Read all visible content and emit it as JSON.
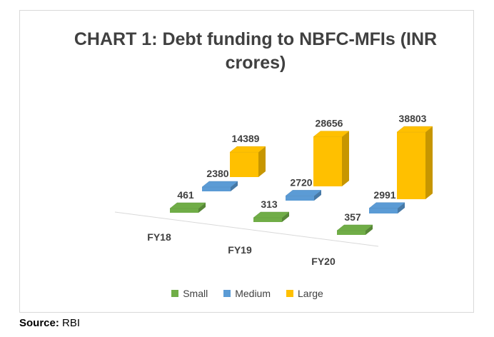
{
  "chart_data": {
    "type": "bar",
    "title": "CHART 1: Debt funding to NBFC-MFIs (INR crores)",
    "categories": [
      "FY18",
      "FY19",
      "FY20"
    ],
    "series": [
      {
        "name": "Small",
        "color": "#70ad47",
        "values": [
          461,
          313,
          357
        ]
      },
      {
        "name": "Medium",
        "color": "#5b9bd5",
        "values": [
          2380,
          2720,
          2991
        ]
      },
      {
        "name": "Large",
        "color": "#ffc000",
        "values": [
          14389,
          28656,
          38803
        ]
      }
    ],
    "xlabel": "",
    "ylabel": "",
    "legend_position": "bottom",
    "style": "3d-column"
  },
  "source": {
    "label": "Source:",
    "value": "RBI"
  }
}
